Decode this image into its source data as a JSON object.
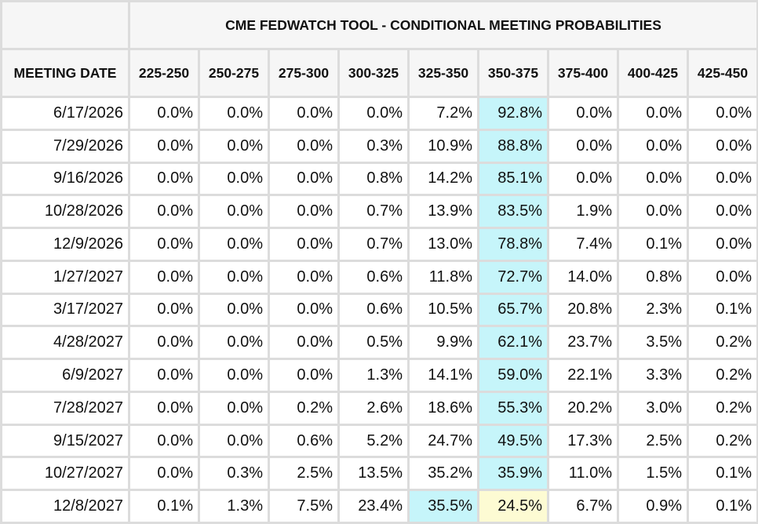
{
  "title": "CME FEDWATCH TOOL - CONDITIONAL MEETING PROBABILITIES",
  "header": {
    "date_label": "MEETING DATE",
    "ranges": [
      "225-250",
      "250-275",
      "275-300",
      "300-325",
      "325-350",
      "350-375",
      "375-400",
      "400-425",
      "425-450"
    ]
  },
  "colors": {
    "highlight_most_likely": "#c6f5fa",
    "highlight_current": "#fdfbd3",
    "header_bg": "#f6f6f6",
    "grid_line": "#dcdcdc"
  },
  "rows": [
    {
      "date": "6/17/2026",
      "values": [
        "0.0%",
        "0.0%",
        "0.0%",
        "0.0%",
        "7.2%",
        "92.8%",
        "0.0%",
        "0.0%",
        "0.0%"
      ],
      "highlight": {
        "5": "cyan"
      }
    },
    {
      "date": "7/29/2026",
      "values": [
        "0.0%",
        "0.0%",
        "0.0%",
        "0.3%",
        "10.9%",
        "88.8%",
        "0.0%",
        "0.0%",
        "0.0%"
      ],
      "highlight": {
        "5": "cyan"
      }
    },
    {
      "date": "9/16/2026",
      "values": [
        "0.0%",
        "0.0%",
        "0.0%",
        "0.8%",
        "14.2%",
        "85.1%",
        "0.0%",
        "0.0%",
        "0.0%"
      ],
      "highlight": {
        "5": "cyan"
      }
    },
    {
      "date": "10/28/2026",
      "values": [
        "0.0%",
        "0.0%",
        "0.0%",
        "0.7%",
        "13.9%",
        "83.5%",
        "1.9%",
        "0.0%",
        "0.0%"
      ],
      "highlight": {
        "5": "cyan"
      }
    },
    {
      "date": "12/9/2026",
      "values": [
        "0.0%",
        "0.0%",
        "0.0%",
        "0.7%",
        "13.0%",
        "78.8%",
        "7.4%",
        "0.1%",
        "0.0%"
      ],
      "highlight": {
        "5": "cyan"
      }
    },
    {
      "date": "1/27/2027",
      "values": [
        "0.0%",
        "0.0%",
        "0.0%",
        "0.6%",
        "11.8%",
        "72.7%",
        "14.0%",
        "0.8%",
        "0.0%"
      ],
      "highlight": {
        "5": "cyan"
      }
    },
    {
      "date": "3/17/2027",
      "values": [
        "0.0%",
        "0.0%",
        "0.0%",
        "0.6%",
        "10.5%",
        "65.7%",
        "20.8%",
        "2.3%",
        "0.1%"
      ],
      "highlight": {
        "5": "cyan"
      }
    },
    {
      "date": "4/28/2027",
      "values": [
        "0.0%",
        "0.0%",
        "0.0%",
        "0.5%",
        "9.9%",
        "62.1%",
        "23.7%",
        "3.5%",
        "0.2%"
      ],
      "highlight": {
        "5": "cyan"
      }
    },
    {
      "date": "6/9/2027",
      "values": [
        "0.0%",
        "0.0%",
        "0.0%",
        "1.3%",
        "14.1%",
        "59.0%",
        "22.1%",
        "3.3%",
        "0.2%"
      ],
      "highlight": {
        "5": "cyan"
      }
    },
    {
      "date": "7/28/2027",
      "values": [
        "0.0%",
        "0.0%",
        "0.2%",
        "2.6%",
        "18.6%",
        "55.3%",
        "20.2%",
        "3.0%",
        "0.2%"
      ],
      "highlight": {
        "5": "cyan"
      }
    },
    {
      "date": "9/15/2027",
      "values": [
        "0.0%",
        "0.0%",
        "0.6%",
        "5.2%",
        "24.7%",
        "49.5%",
        "17.3%",
        "2.5%",
        "0.2%"
      ],
      "highlight": {
        "5": "cyan"
      }
    },
    {
      "date": "10/27/2027",
      "values": [
        "0.0%",
        "0.3%",
        "2.5%",
        "13.5%",
        "35.2%",
        "35.9%",
        "11.0%",
        "1.5%",
        "0.1%"
      ],
      "highlight": {
        "5": "cyan"
      }
    },
    {
      "date": "12/8/2027",
      "values": [
        "0.1%",
        "1.3%",
        "7.5%",
        "23.4%",
        "35.5%",
        "24.5%",
        "6.7%",
        "0.9%",
        "0.1%"
      ],
      "highlight": {
        "4": "cyan",
        "5": "yellow"
      }
    }
  ]
}
